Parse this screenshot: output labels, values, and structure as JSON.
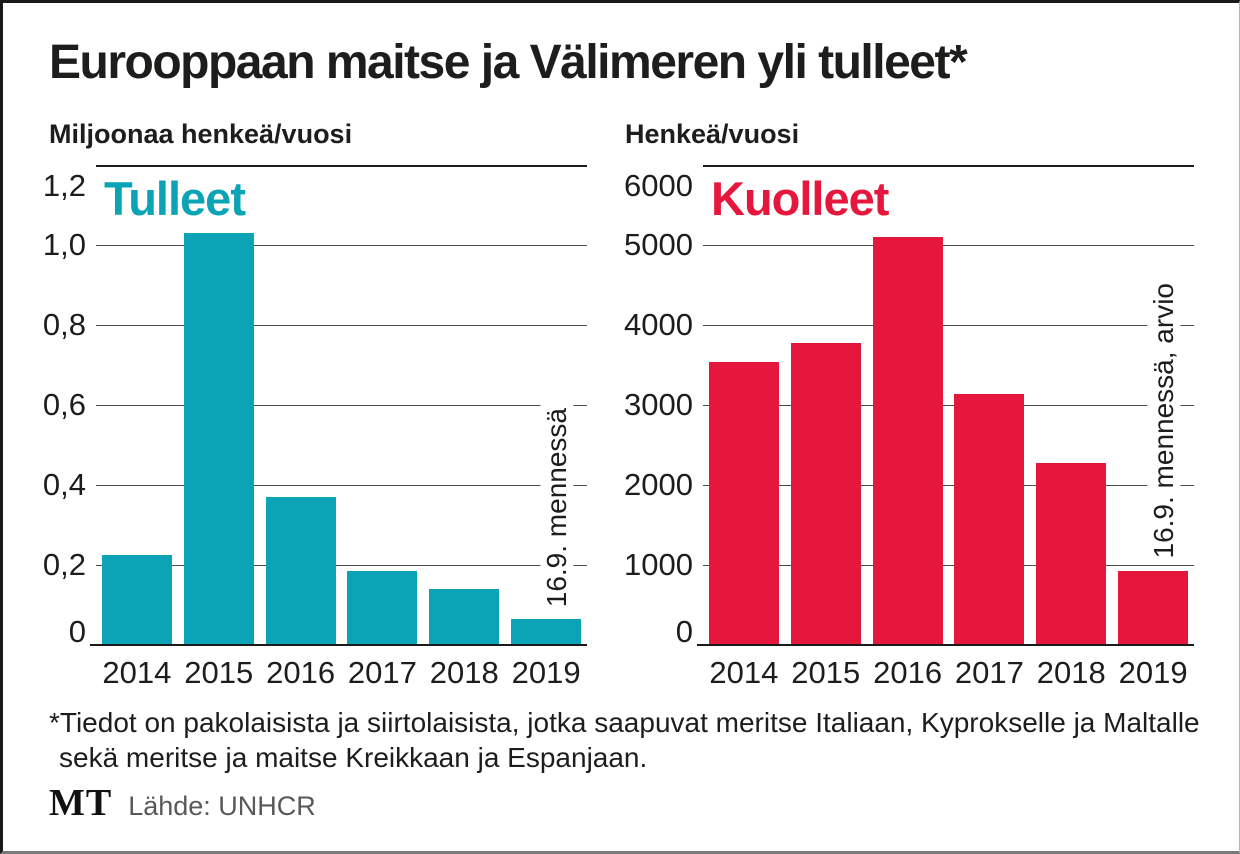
{
  "page": {
    "title": "Eurooppaan maitse ja Välimeren yli tulleet*"
  },
  "colors": {
    "arrived_teal": "#0ba4b6",
    "dead_red": "#e6173c",
    "text": "#1d1d1b",
    "gridline": "#4d4d4d",
    "source_gray": "#595959"
  },
  "chart_data": [
    {
      "type": "bar",
      "title": "Tulleet",
      "unit_label": "Miljoonaa henkeä/vuosi",
      "categories": [
        "2014",
        "2015",
        "2016",
        "2017",
        "2018",
        "2019"
      ],
      "values": [
        0.225,
        1.03,
        0.37,
        0.185,
        0.14,
        0.065
      ],
      "yticks": [
        "1,2",
        "1,0",
        "0,8",
        "0,6",
        "0,4",
        "0,2",
        "0"
      ],
      "ytick_values": [
        1.2,
        1.0,
        0.8,
        0.6,
        0.4,
        0.2,
        0
      ],
      "ylim": [
        0,
        1.2
      ],
      "bar_color": "#0ba4b6",
      "annotation": "16.9. mennessä",
      "grid": true,
      "legend": "none"
    },
    {
      "type": "bar",
      "title": "Kuolleet",
      "unit_label": "Henkeä/vuosi",
      "categories": [
        "2014",
        "2015",
        "2016",
        "2017",
        "2018",
        "2019"
      ],
      "values": [
        3540,
        3770,
        5100,
        3140,
        2270,
        930
      ],
      "yticks": [
        "6000",
        "5000",
        "4000",
        "3000",
        "2000",
        "1000",
        "0"
      ],
      "ytick_values": [
        6000,
        5000,
        4000,
        3000,
        2000,
        1000,
        0
      ],
      "ylim": [
        0,
        6000
      ],
      "bar_color": "#e6173c",
      "annotation": "16.9. mennessä, arvio",
      "grid": true,
      "legend": "none"
    }
  ],
  "footnote": {
    "line1": "*Tiedot on pakolaisista ja siirtolaisista, jotka saapuvat meritse Italiaan, Kyprokselle ja Maltalle",
    "line2": "sekä meritse ja maitse Kreikkaan ja Espanjaan."
  },
  "source": {
    "logo": "MT",
    "label": "Lähde: UNHCR"
  }
}
